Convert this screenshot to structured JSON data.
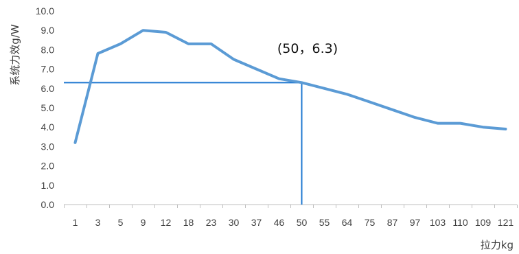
{
  "chart_data": {
    "type": "line",
    "title": "",
    "xlabel": "拉力kg",
    "ylabel": "系统力效g/W",
    "categories": [
      "1",
      "3",
      "5",
      "9",
      "12",
      "18",
      "23",
      "30",
      "37",
      "46",
      "50",
      "55",
      "64",
      "75",
      "87",
      "97",
      "103",
      "110",
      "109",
      "121"
    ],
    "series": [
      {
        "values": [
          3.2,
          7.8,
          8.3,
          9.0,
          8.9,
          8.3,
          8.3,
          7.5,
          7.0,
          6.5,
          6.3,
          6.0,
          5.7,
          5.3,
          4.9,
          4.5,
          4.2,
          4.2,
          4.0,
          3.9
        ]
      }
    ],
    "ylim": [
      0,
      10
    ],
    "yticks": [
      "0.0",
      "1.0",
      "2.0",
      "3.0",
      "4.0",
      "5.0",
      "6.0",
      "7.0",
      "8.0",
      "9.0",
      "10.0"
    ],
    "grid": false,
    "annotation": {
      "text": "(50，6.3)",
      "category": "50",
      "value": 6.3
    },
    "colors": {
      "line": "#5b9bd5",
      "marker_line": "#1f78d1",
      "axis": "#bfbfbf",
      "text": "#404040"
    }
  }
}
